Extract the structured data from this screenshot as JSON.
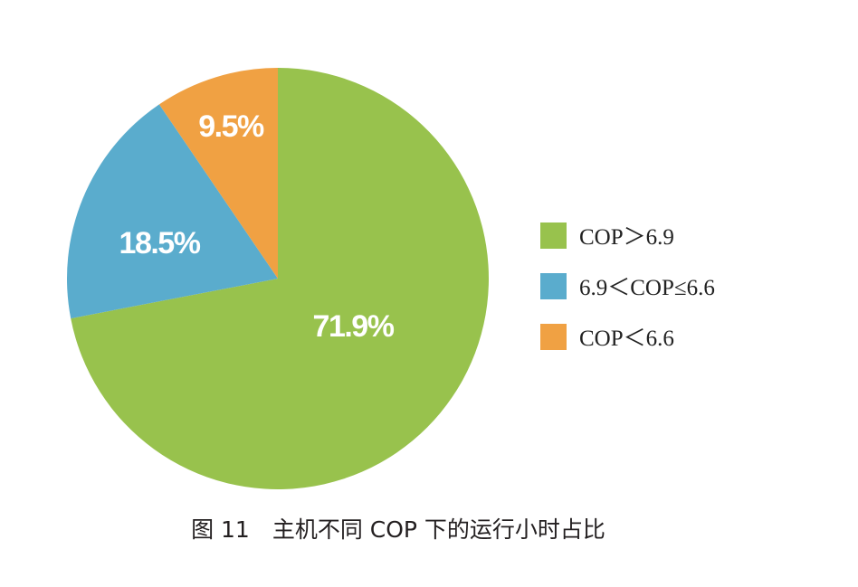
{
  "chart_data": {
    "type": "pie",
    "slices": [
      {
        "label": "COP＞6.9",
        "value": 71.9,
        "value_label": "71.9%",
        "color": "#98c24d"
      },
      {
        "label": "6.9＜COP≤6.6",
        "value": 18.5,
        "value_label": "18.5%",
        "color": "#5aaccd"
      },
      {
        "label": "COP＜6.6",
        "value": 9.5,
        "value_label": "9.5%",
        "color": "#f0a143"
      }
    ],
    "legend_position": "right",
    "caption": "图 11　主机不同 COP 下的运行小时占比"
  }
}
